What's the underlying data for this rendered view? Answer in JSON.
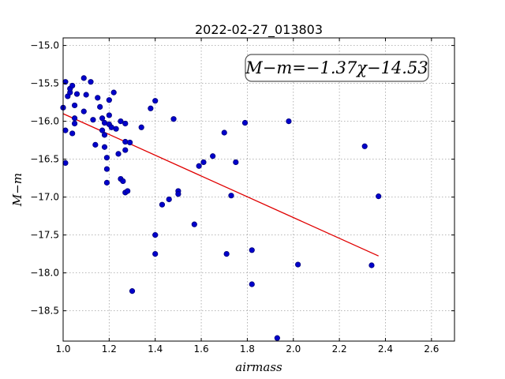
{
  "chart_data": {
    "type": "scatter",
    "title": "2022-02-27_013803",
    "xlabel": "airmass",
    "ylabel": "M−m",
    "xlim": [
      1.0,
      2.7
    ],
    "ylim": [
      -18.9,
      -14.9
    ],
    "y_inverted": false,
    "grid": true,
    "xticks": [
      1.0,
      1.2,
      1.4,
      1.6,
      1.8,
      2.0,
      2.2,
      2.4,
      2.6
    ],
    "xtick_labels": [
      "1.0",
      "1.2",
      "1.4",
      "1.6",
      "1.8",
      "2.0",
      "2.2",
      "2.4",
      "2.6"
    ],
    "yticks": [
      -15.0,
      -15.5,
      -16.0,
      -16.5,
      -17.0,
      -17.5,
      -18.0,
      -18.5
    ],
    "ytick_labels": [
      "−15.0",
      "−15.5",
      "−16.0",
      "−16.5",
      "−17.0",
      "−17.5",
      "−18.0",
      "−18.5"
    ],
    "annotation": "M−m=−1.37χ−14.53",
    "colors": {
      "points": "#0000cc",
      "fit": "#e00000"
    },
    "fit_line": {
      "slope": -1.37,
      "intercept": -14.53,
      "x_range": [
        1.0,
        2.37
      ]
    },
    "points": [
      {
        "x": 1.0,
        "y": -15.82
      },
      {
        "x": 1.01,
        "y": -15.48
      },
      {
        "x": 1.01,
        "y": -16.12
      },
      {
        "x": 1.01,
        "y": -16.55
      },
      {
        "x": 1.02,
        "y": -15.67
      },
      {
        "x": 1.03,
        "y": -15.62
      },
      {
        "x": 1.03,
        "y": -15.57
      },
      {
        "x": 1.04,
        "y": -15.53
      },
      {
        "x": 1.04,
        "y": -16.16
      },
      {
        "x": 1.05,
        "y": -15.79
      },
      {
        "x": 1.05,
        "y": -15.96
      },
      {
        "x": 1.05,
        "y": -16.03
      },
      {
        "x": 1.06,
        "y": -15.64
      },
      {
        "x": 1.09,
        "y": -15.43
      },
      {
        "x": 1.09,
        "y": -15.87
      },
      {
        "x": 1.1,
        "y": -15.65
      },
      {
        "x": 1.12,
        "y": -15.48
      },
      {
        "x": 1.13,
        "y": -15.98
      },
      {
        "x": 1.14,
        "y": -16.31
      },
      {
        "x": 1.15,
        "y": -15.69
      },
      {
        "x": 1.16,
        "y": -15.81
      },
      {
        "x": 1.17,
        "y": -15.96
      },
      {
        "x": 1.17,
        "y": -16.12
      },
      {
        "x": 1.18,
        "y": -16.02
      },
      {
        "x": 1.18,
        "y": -16.18
      },
      {
        "x": 1.18,
        "y": -16.34
      },
      {
        "x": 1.19,
        "y": -16.48
      },
      {
        "x": 1.19,
        "y": -16.63
      },
      {
        "x": 1.19,
        "y": -16.81
      },
      {
        "x": 1.2,
        "y": -15.72
      },
      {
        "x": 1.2,
        "y": -15.92
      },
      {
        "x": 1.2,
        "y": -16.04
      },
      {
        "x": 1.21,
        "y": -16.08
      },
      {
        "x": 1.22,
        "y": -15.62
      },
      {
        "x": 1.23,
        "y": -16.1
      },
      {
        "x": 1.24,
        "y": -16.43
      },
      {
        "x": 1.25,
        "y": -16.0
      },
      {
        "x": 1.25,
        "y": -16.76
      },
      {
        "x": 1.26,
        "y": -16.79
      },
      {
        "x": 1.27,
        "y": -16.03
      },
      {
        "x": 1.27,
        "y": -16.38
      },
      {
        "x": 1.27,
        "y": -16.27
      },
      {
        "x": 1.27,
        "y": -16.94
      },
      {
        "x": 1.28,
        "y": -16.92
      },
      {
        "x": 1.29,
        "y": -16.28
      },
      {
        "x": 1.3,
        "y": -18.24
      },
      {
        "x": 1.34,
        "y": -16.08
      },
      {
        "x": 1.38,
        "y": -15.83
      },
      {
        "x": 1.4,
        "y": -15.73
      },
      {
        "x": 1.4,
        "y": -17.5
      },
      {
        "x": 1.4,
        "y": -17.75
      },
      {
        "x": 1.43,
        "y": -17.1
      },
      {
        "x": 1.46,
        "y": -17.03
      },
      {
        "x": 1.48,
        "y": -15.97
      },
      {
        "x": 1.5,
        "y": -16.92
      },
      {
        "x": 1.5,
        "y": -16.96
      },
      {
        "x": 1.57,
        "y": -17.36
      },
      {
        "x": 1.59,
        "y": -16.59
      },
      {
        "x": 1.61,
        "y": -16.54
      },
      {
        "x": 1.65,
        "y": -16.46
      },
      {
        "x": 1.7,
        "y": -16.15
      },
      {
        "x": 1.71,
        "y": -17.75
      },
      {
        "x": 1.73,
        "y": -16.98
      },
      {
        "x": 1.75,
        "y": -16.54
      },
      {
        "x": 1.79,
        "y": -16.02
      },
      {
        "x": 1.82,
        "y": -17.7
      },
      {
        "x": 1.82,
        "y": -18.15
      },
      {
        "x": 1.93,
        "y": -18.86
      },
      {
        "x": 1.98,
        "y": -16.0
      },
      {
        "x": 2.02,
        "y": -17.89
      },
      {
        "x": 2.31,
        "y": -16.33
      },
      {
        "x": 2.34,
        "y": -17.9
      },
      {
        "x": 2.37,
        "y": -16.99
      }
    ]
  }
}
